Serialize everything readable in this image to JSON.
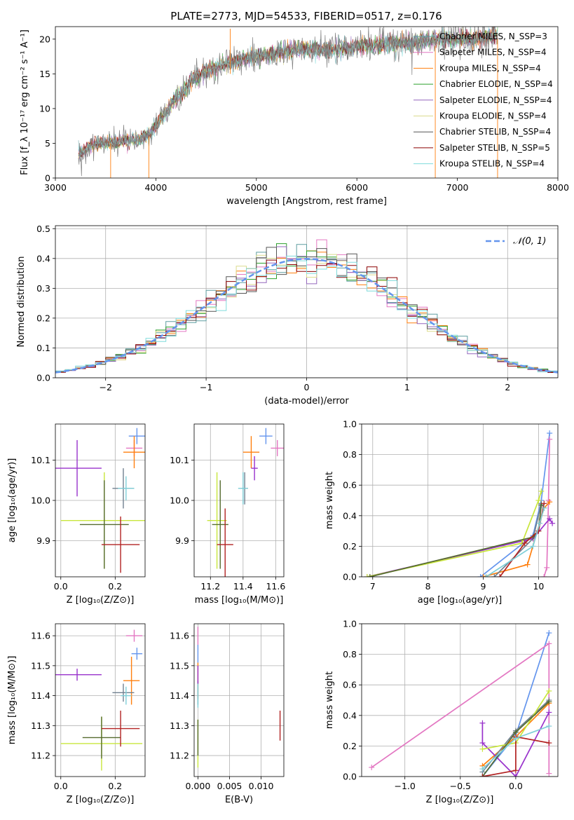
{
  "title": "PLATE=2773, MJD=54533, FIBERID=0517, z=0.176",
  "palette": [
    "#5f9ea0",
    "#e377c2",
    "#ff7f0e",
    "#2ca02c",
    "#9467bd",
    "#dbdb8d",
    "#555555",
    "#8b0000",
    "#7fdbdb"
  ],
  "errpalette": [
    "#6495ed",
    "#e377c2",
    "#ff7f0e",
    "#708090",
    "#9932cc",
    "#c8e63c",
    "#556b2f",
    "#b22222",
    "#7fcfd8"
  ],
  "chart_data": [
    {
      "id": "spectrum",
      "type": "line",
      "xlabel": "wavelength [Angstrom, rest frame]",
      "ylabel": "Flux [f_λ 10⁻¹⁷ erg cm⁻² s⁻¹ A⁻¹]",
      "xlim": [
        3000,
        8000
      ],
      "ylim": [
        0,
        21.8
      ],
      "xticks": [
        "3000",
        "4000",
        "5000",
        "6000",
        "7000",
        "8000"
      ],
      "yticks": [
        "0",
        "5",
        "10",
        "15",
        "20"
      ],
      "legend": [
        "Chabrier MILES, N_SSP=3",
        "Salpeter MILES, N_SSP=4",
        "Kroupa MILES, N_SSP=4",
        "Chabrier ELODIE, N_SSP=4",
        "Salpeter ELODIE, N_SSP=4",
        "Kroupa ELODIE, N_SSP=4",
        "Chabrier STELIB, N_SSP=4",
        "Salpeter STELIB, N_SSP=5",
        "Kroupa STELIB, N_SSP=4"
      ],
      "data_trend": {
        "x": [
          3230,
          3400,
          3550,
          3700,
          3850,
          3950,
          4050,
          4150,
          4250,
          4350,
          4450,
          4550,
          4700,
          4850,
          5000,
          5200,
          5400,
          5600,
          5800,
          6000,
          6200,
          6400,
          6600,
          6800,
          7000,
          7200,
          7400
        ],
        "y": [
          3.5,
          5.0,
          5.0,
          5.5,
          5.5,
          6.5,
          8.5,
          10.5,
          12.0,
          14.0,
          15.0,
          15.5,
          16.5,
          17.0,
          17.5,
          18.0,
          18.5,
          18.5,
          18.5,
          19.0,
          19.0,
          19.5,
          19.5,
          20.0,
          20.0,
          20.0,
          20.5
        ]
      }
    },
    {
      "id": "residuals",
      "type": "step",
      "xlabel": "(data-model)/error",
      "ylabel": "Normed distribution",
      "xlim": [
        -2.5,
        2.5
      ],
      "ylim": [
        0,
        0.51
      ],
      "xticks": [
        "−2",
        "−1",
        "0",
        "1",
        "2"
      ],
      "yticks": [
        "0.0",
        "0.1",
        "0.2",
        "0.3",
        "0.4",
        "0.5"
      ],
      "legend": [
        "𝒩(0, 1)"
      ],
      "gaussian": {
        "mu": 0,
        "sigma": 1
      }
    },
    {
      "id": "age-vs-Z",
      "type": "errorbar",
      "xlabel": "Z [log₁₀(Z/Z⊙)]",
      "ylabel": "age  [log₁₀(age/yr)]",
      "xlim": [
        -0.02,
        0.31
      ],
      "ylim": [
        9.81,
        10.19
      ],
      "xticks": [
        "0.0",
        "0.2"
      ],
      "yticks": [
        "9.9",
        "10.0",
        "10.1"
      ],
      "points": [
        {
          "x": 0.28,
          "y": 10.16,
          "xerr": 0.03,
          "yerr": 0.02
        },
        {
          "x": 0.27,
          "y": 10.13,
          "xerr": 0.03,
          "yerr": 0.02
        },
        {
          "x": 0.27,
          "y": 10.12,
          "xerr": 0.04,
          "yerr": 0.04
        },
        {
          "x": 0.23,
          "y": 10.03,
          "xerr": 0.04,
          "yerr": 0.05
        },
        {
          "x": 0.06,
          "y": 10.08,
          "xerr": 0.09,
          "yerr": 0.07
        },
        {
          "x": 0.16,
          "y": 9.95,
          "xerr": 0.16,
          "yerr": 0.12
        },
        {
          "x": 0.16,
          "y": 9.94,
          "xerr": 0.09,
          "yerr": 0.11
        },
        {
          "x": 0.22,
          "y": 9.89,
          "xerr": 0.07,
          "yerr": 0.07
        },
        {
          "x": 0.24,
          "y": 10.03,
          "xerr": 0.03,
          "yerr": 0.03
        }
      ]
    },
    {
      "id": "age-vs-mass",
      "type": "errorbar",
      "xlabel": "mass [log₁₀(M/M⊙)]",
      "ylabel": "",
      "xlim": [
        11.1,
        11.65
      ],
      "ylim": [
        9.81,
        10.19
      ],
      "xticks": [
        "11.2",
        "11.4",
        "11.6"
      ],
      "yticks": [
        "9.9",
        "10.0",
        "10.1"
      ],
      "points": [
        {
          "x": 11.54,
          "y": 10.16,
          "xerr": 0.04,
          "yerr": 0.02
        },
        {
          "x": 11.61,
          "y": 10.13,
          "xerr": 0.04,
          "yerr": 0.02
        },
        {
          "x": 11.45,
          "y": 10.12,
          "xerr": 0.05,
          "yerr": 0.04
        },
        {
          "x": 11.41,
          "y": 10.03,
          "xerr": 0.02,
          "yerr": 0.04
        },
        {
          "x": 11.47,
          "y": 10.08,
          "xerr": 0.02,
          "yerr": 0.03
        },
        {
          "x": 11.24,
          "y": 9.95,
          "xerr": 0.06,
          "yerr": 0.12
        },
        {
          "x": 11.26,
          "y": 9.94,
          "xerr": 0.05,
          "yerr": 0.11
        },
        {
          "x": 11.29,
          "y": 9.89,
          "xerr": 0.05,
          "yerr": 0.09
        },
        {
          "x": 11.4,
          "y": 10.03,
          "xerr": 0.03,
          "yerr": 0.04
        }
      ]
    },
    {
      "id": "weight-vs-age",
      "type": "line",
      "xlabel": "age  [log₁₀(age/yr)]",
      "ylabel": "mass weight",
      "xlim": [
        6.8,
        10.35
      ],
      "ylim": [
        0,
        1
      ],
      "xticks": [
        "7",
        "8",
        "9",
        "10"
      ],
      "yticks": [
        "0.0",
        "0.2",
        "0.4",
        "0.6",
        "0.8",
        "1.0"
      ],
      "series": [
        {
          "x": [
            8.95,
            9.9,
            10.05,
            10.2
          ],
          "y": [
            0,
            0.27,
            0.5,
            0.94
          ]
        },
        {
          "x": [
            10.1,
            10.15,
            10.18,
            10.2
          ],
          "y": [
            0,
            0.06,
            0.5,
            0.9
          ]
        },
        {
          "x": [
            9.0,
            9.8,
            10.1,
            10.2
          ],
          "y": [
            0,
            0.08,
            0.45,
            0.49
          ]
        },
        {
          "x": [
            9.2,
            9.9,
            10.05,
            10.1
          ],
          "y": [
            0,
            0.25,
            0.48,
            0.45
          ]
        },
        {
          "x": [
            6.9,
            9.9,
            10.2,
            10.25
          ],
          "y": [
            0,
            0.25,
            0.38,
            0.35
          ]
        },
        {
          "x": [
            6.9,
            9.7,
            10.0,
            10.05
          ],
          "y": [
            0,
            0.22,
            0.5,
            0.56
          ]
        },
        {
          "x": [
            6.95,
            9.9,
            10.0,
            10.05
          ],
          "y": [
            0,
            0.26,
            0.3,
            0.47
          ]
        },
        {
          "x": [
            9.3,
            9.75,
            10.0,
            10.1
          ],
          "y": [
            0,
            0.22,
            0.3,
            0.48
          ]
        },
        {
          "x": [
            9.05,
            9.9,
            10.02,
            10.1
          ],
          "y": [
            0,
            0.2,
            0.35,
            0.45
          ]
        }
      ]
    },
    {
      "id": "mass-vs-Z",
      "type": "errorbar",
      "xlabel": "Z [log₁₀(Z/Z⊙)]",
      "ylabel": "mass [log₁₀(M/M⊙)]",
      "xlim": [
        -0.02,
        0.31
      ],
      "ylim": [
        11.13,
        11.64
      ],
      "xticks": [
        "0.0",
        "0.2"
      ],
      "yticks": [
        "11.2",
        "11.3",
        "11.4",
        "11.5",
        "11.6"
      ],
      "points": [
        {
          "x": 0.28,
          "y": 11.54,
          "xerr": 0.02,
          "yerr": 0.02
        },
        {
          "x": 0.27,
          "y": 11.6,
          "xerr": 0.03,
          "yerr": 0.02
        },
        {
          "x": 0.26,
          "y": 11.45,
          "xerr": 0.03,
          "yerr": 0.08
        },
        {
          "x": 0.23,
          "y": 11.41,
          "xerr": 0.04,
          "yerr": 0.03
        },
        {
          "x": 0.06,
          "y": 11.47,
          "xerr": 0.09,
          "yerr": 0.02
        },
        {
          "x": 0.15,
          "y": 11.24,
          "xerr": 0.15,
          "yerr": 0.09
        },
        {
          "x": 0.15,
          "y": 11.26,
          "xerr": 0.07,
          "yerr": 0.07
        },
        {
          "x": 0.22,
          "y": 11.29,
          "xerr": 0.07,
          "yerr": 0.06
        },
        {
          "x": 0.24,
          "y": 11.4,
          "xerr": 0.02,
          "yerr": 0.03
        }
      ]
    },
    {
      "id": "mass-vs-ebv",
      "type": "errorbar",
      "xlabel": "E(B-V)",
      "ylabel": "",
      "xlim": [
        -0.0006,
        0.0136
      ],
      "ylim": [
        11.13,
        11.64
      ],
      "xticks": [
        "0.000",
        "0.005",
        "0.010"
      ],
      "yticks": [
        "11.2",
        "11.3",
        "11.4",
        "11.5",
        "11.6"
      ],
      "points": [
        {
          "x": 0.0,
          "y": 11.54,
          "xerr": 0,
          "yerr": 0.03
        },
        {
          "x": 0.0,
          "y": 11.6,
          "xerr": 0,
          "yerr": 0.03
        },
        {
          "x": 0.0,
          "y": 11.45,
          "xerr": 0,
          "yerr": 0.06
        },
        {
          "x": 0.0,
          "y": 11.41,
          "xerr": 0,
          "yerr": 0.04
        },
        {
          "x": 0.0,
          "y": 11.47,
          "xerr": 0,
          "yerr": 0.03
        },
        {
          "x": 0.0,
          "y": 11.24,
          "xerr": 0,
          "yerr": 0.08
        },
        {
          "x": 0.0,
          "y": 11.26,
          "xerr": 0,
          "yerr": 0.06
        },
        {
          "x": 0.013,
          "y": 11.3,
          "xerr": 0,
          "yerr": 0.05
        },
        {
          "x": 0.0,
          "y": 11.4,
          "xerr": 0,
          "yerr": 0.04
        }
      ]
    },
    {
      "id": "weight-vs-Z",
      "type": "line",
      "xlabel": "Z [log₁₀(Z/Z⊙)]",
      "ylabel": "mass weight",
      "xlim": [
        -1.39,
        0.38
      ],
      "ylim": [
        0,
        1
      ],
      "xticks": [
        "−1.0",
        "−0.5",
        "0.0"
      ],
      "yticks": [
        "0.0",
        "0.2",
        "0.4",
        "0.6",
        "0.8",
        "1.0"
      ],
      "series": [
        {
          "x": [
            -0.3,
            0.0,
            0.3
          ],
          "y": [
            0,
            0.27,
            0.94
          ]
        },
        {
          "x": [
            -1.3,
            0.3,
            0.3
          ],
          "y": [
            0.06,
            0.87,
            0.02
          ]
        },
        {
          "x": [
            -0.3,
            0.0,
            0.3
          ],
          "y": [
            0.07,
            0.26,
            0.48
          ]
        },
        {
          "x": [
            -0.3,
            0.0,
            0.3
          ],
          "y": [
            0.03,
            0.3,
            0.5
          ]
        },
        {
          "x": [
            -0.3,
            -0.3,
            0.0,
            0.3
          ],
          "y": [
            0.35,
            0.22,
            0.0,
            0.42
          ]
        },
        {
          "x": [
            -0.3,
            0.0,
            0.3
          ],
          "y": [
            0.18,
            0.22,
            0.56
          ]
        },
        {
          "x": [
            -0.3,
            0.0,
            0.3
          ],
          "y": [
            0.0,
            0.29,
            0.49
          ]
        },
        {
          "x": [
            -0.3,
            0.0,
            0.0,
            0.3
          ],
          "y": [
            0.0,
            0.04,
            0.26,
            0.22
          ]
        },
        {
          "x": [
            -0.3,
            0.0,
            0.3
          ],
          "y": [
            0.05,
            0.25,
            0.33
          ]
        }
      ]
    }
  ]
}
